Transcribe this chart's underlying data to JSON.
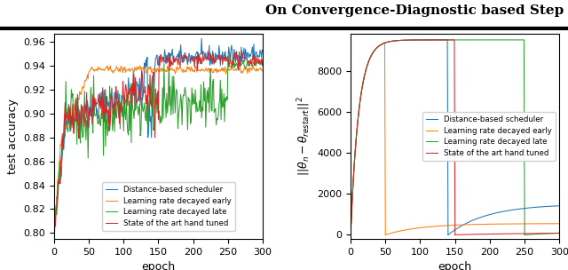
{
  "title": "On Convergence-Diagnostic based Step",
  "left_ylabel": "test accuracy",
  "right_ylabel": "$||\\theta_n - \\theta_{restart}||^2$",
  "xlabel": "epoch",
  "xlim": [
    0,
    300
  ],
  "left_ylim": [
    0.795,
    0.967
  ],
  "right_ylim": [
    -200,
    9800
  ],
  "left_yticks": [
    0.8,
    0.82,
    0.84,
    0.86,
    0.88,
    0.9,
    0.92,
    0.94,
    0.96
  ],
  "right_yticks": [
    0,
    2000,
    4000,
    6000,
    8000
  ],
  "xticks": [
    0,
    50,
    100,
    150,
    200,
    250,
    300
  ],
  "colors": {
    "blue": "#1f77b4",
    "orange": "#ff7f0e",
    "green": "#2ca02c",
    "red": "#d62728"
  },
  "legend_labels": [
    "Distance-based scheduler",
    "Learning rate decayed early",
    "Learning rate decayed late",
    "State of the art hand tuned"
  ],
  "restart_epochs": {
    "blue": 140,
    "orange": 50,
    "green": 250,
    "red": 150
  },
  "max_dist": 9500,
  "after_dist": {
    "blue": 1500,
    "orange": 550,
    "green": 200,
    "red": 100
  }
}
